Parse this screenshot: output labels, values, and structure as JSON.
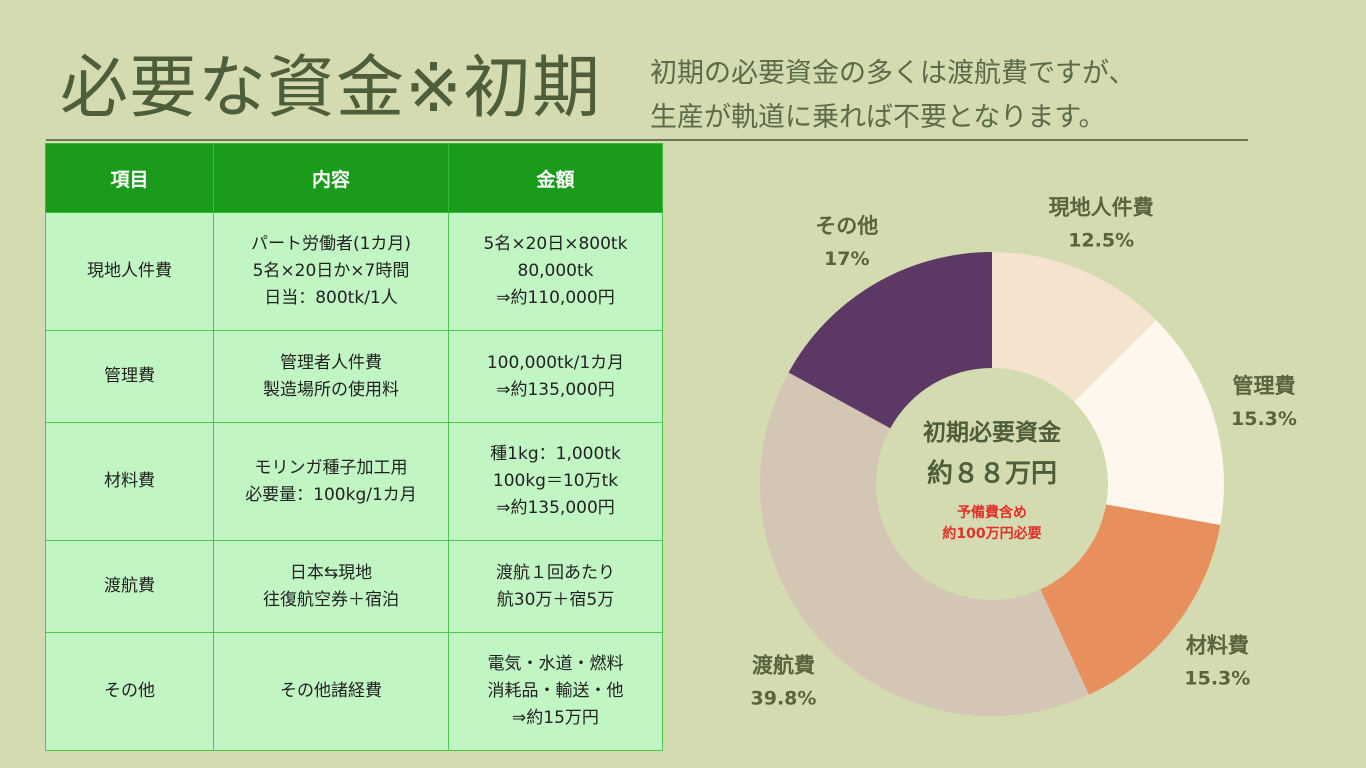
{
  "page": {
    "title": "必要な資金※初期",
    "subtitle_lines": [
      "初期の必要資金の多くは渡航費ですが、",
      "生産が軌道に乗れば不要となります。"
    ]
  },
  "table": {
    "headers": [
      "項目",
      "内容",
      "金額"
    ],
    "rows": [
      {
        "item": "現地人件費",
        "content": "パート労働者(1カ月)\n5名×20日か×7時間\n日当：800tk/1人",
        "amount": "5名×20日×800tk\n80,000tk\n⇒約110,000円"
      },
      {
        "item": "管理費",
        "content": "管理者人件費\n製造場所の使用料",
        "amount": "100,000tk/1カ月\n⇒約135,000円"
      },
      {
        "item": "材料費",
        "content": "モリンガ種子加工用\n必要量：100kg/1カ月",
        "amount": "種1kg：1,000tk\n100kg＝10万tk\n⇒約135,000円"
      },
      {
        "item": "渡航費",
        "content": "日本⇆現地\n往復航空券＋宿泊",
        "amount": "渡航１回あたり\n航30万＋宿5万"
      },
      {
        "item": "その他",
        "content": "その他諸経費",
        "amount": "電気・水道・燃料\n消耗品・輸送・他\n⇒約15万円"
      }
    ]
  },
  "chart_data": {
    "type": "pie",
    "variant": "donut",
    "slices": [
      {
        "name": "現地人件費",
        "label": "12.5%",
        "value": 12.5,
        "color": "#f3e3cf"
      },
      {
        "name": "管理費",
        "label": "15.3%",
        "value": 15.3,
        "color": "#fdf7ee"
      },
      {
        "name": "材料費",
        "label": "15.3%",
        "value": 15.3,
        "color": "#e88f5e"
      },
      {
        "name": "渡航費",
        "label": "39.8%",
        "value": 39.8,
        "color": "#d3c6b5"
      },
      {
        "name": "その他",
        "label": "17%",
        "value": 17,
        "color": "#5c3865"
      }
    ],
    "center": {
      "title": "初期必要資金",
      "amount": "約８８万円",
      "note_lines": [
        "予備費含め",
        "約100万円必要"
      ]
    },
    "start_position": "top",
    "direction": "clockwise"
  }
}
